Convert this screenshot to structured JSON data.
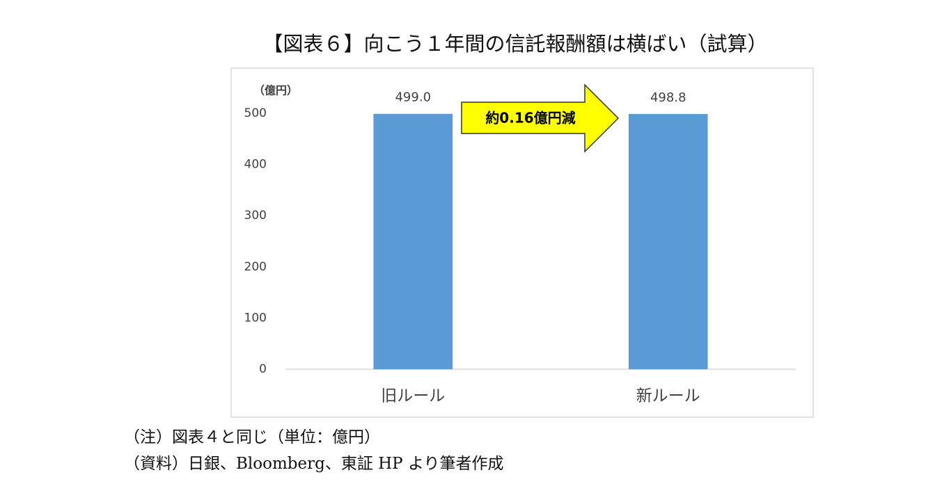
{
  "chart_data": {
    "type": "bar",
    "title": "【図表６】向こう１年間の信託報酬額は横ばい（試算）",
    "y_unit_label": "（億円）",
    "categories": [
      "旧ルール",
      "新ルール"
    ],
    "values": [
      499.0,
      498.8
    ],
    "value_labels": [
      "499.0",
      "498.8"
    ],
    "color": "#5b9bd5",
    "ylim": [
      0,
      500
    ],
    "yticks": [
      0,
      100,
      200,
      300,
      400,
      500
    ],
    "grid": false,
    "annotation": "約0.16億円減",
    "notes": [
      "（注）図表４と同じ（単位：億円）",
      "（資料）日銀、Bloomberg、東証 HP より筆者作成"
    ]
  }
}
